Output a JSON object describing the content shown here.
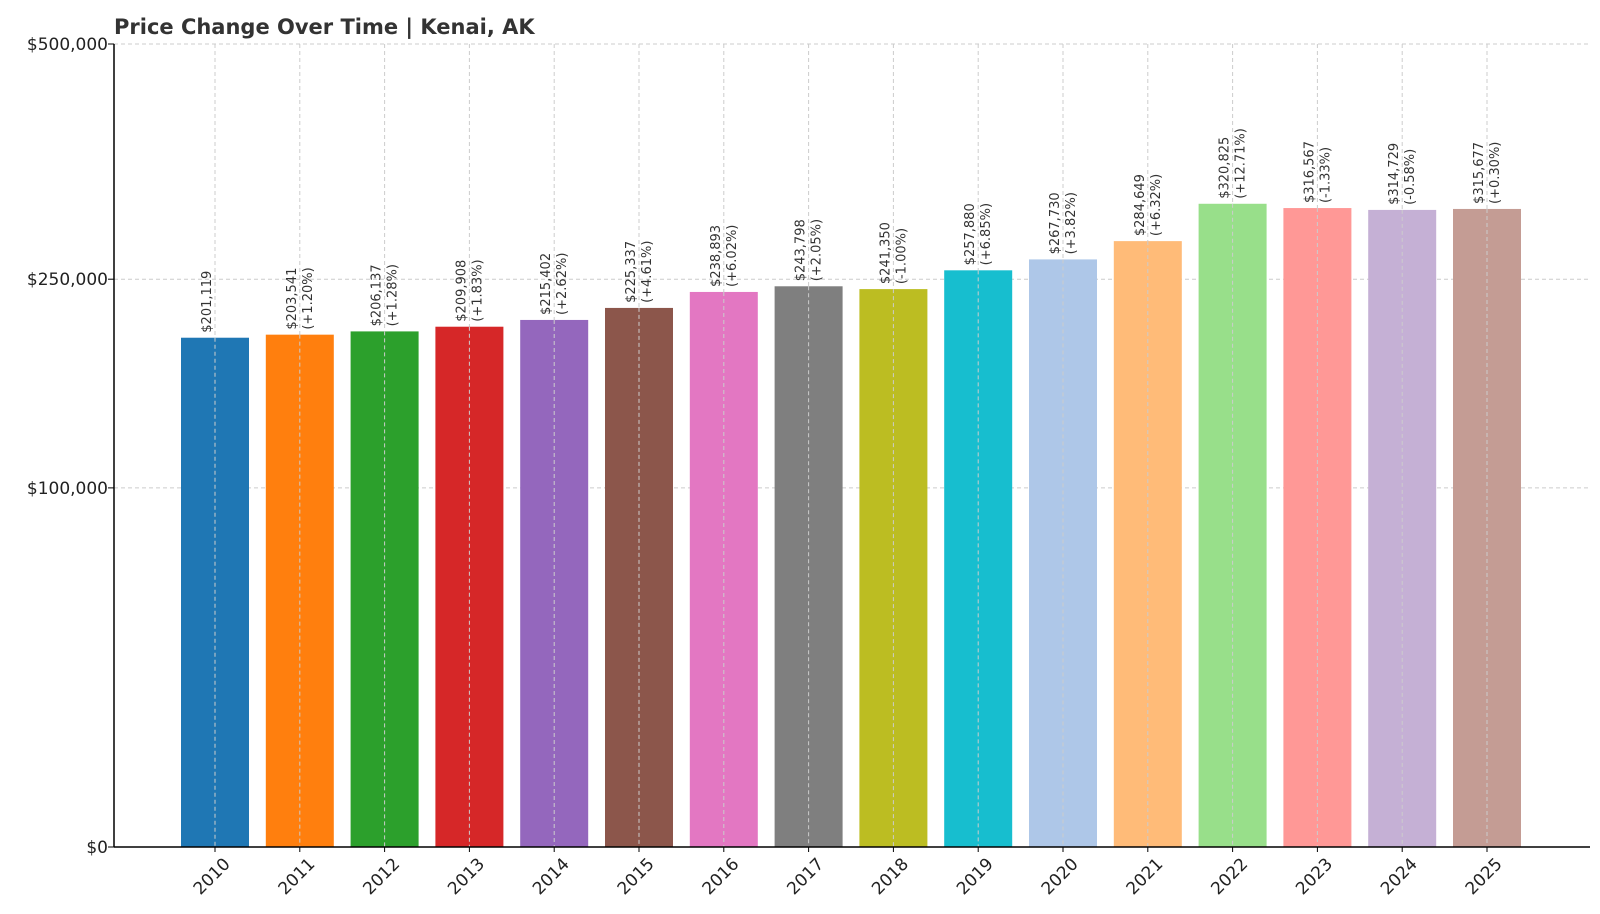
{
  "chart_data": {
    "type": "bar",
    "title": "Price Change Over Time | Kenai, AK",
    "xlabel": "",
    "ylabel": "",
    "ylim": [
      0,
      500000
    ],
    "y_scale": "sqrt",
    "yticks": [
      0,
      100000,
      250000,
      500000
    ],
    "ytick_labels": [
      "$0",
      "$100,000",
      "$250,000",
      "$500,000"
    ],
    "grid": true,
    "legend": false,
    "categories": [
      "2010",
      "2011",
      "2012",
      "2013",
      "2014",
      "2015",
      "2016",
      "2017",
      "2018",
      "2019",
      "2020",
      "2021",
      "2022",
      "2023",
      "2024",
      "2025"
    ],
    "values": [
      201119,
      203541,
      206137,
      209908,
      215402,
      225337,
      238893,
      243798,
      241350,
      257880,
      267730,
      284649,
      320825,
      316567,
      314729,
      315677
    ],
    "value_labels": [
      "$201,119",
      "$203,541",
      "$206,137",
      "$209,908",
      "$215,402",
      "$225,337",
      "$238,893",
      "$243,798",
      "$241,350",
      "$257,880",
      "$267,730",
      "$284,649",
      "$320,825",
      "$316,567",
      "$314,729",
      "$315,677"
    ],
    "change_labels": [
      "",
      "(+1.20%)",
      "(+1.28%)",
      "(+1.83%)",
      "(+2.62%)",
      "(+4.61%)",
      "(+6.02%)",
      "(+2.05%)",
      "(-1.00%)",
      "(+6.85%)",
      "(+3.82%)",
      "(+6.32%)",
      "(+12.71%)",
      "(-1.33%)",
      "(-0.58%)",
      "(+0.30%)"
    ],
    "colors": [
      "#1f77b4",
      "#ff7f0e",
      "#2ca02c",
      "#d62728",
      "#9467bd",
      "#8c564b",
      "#e377c2",
      "#7f7f7f",
      "#bcbd22",
      "#17becf",
      "#aec7e8",
      "#ffbb78",
      "#98df8a",
      "#ff9896",
      "#c5b0d5",
      "#c49c94"
    ]
  }
}
